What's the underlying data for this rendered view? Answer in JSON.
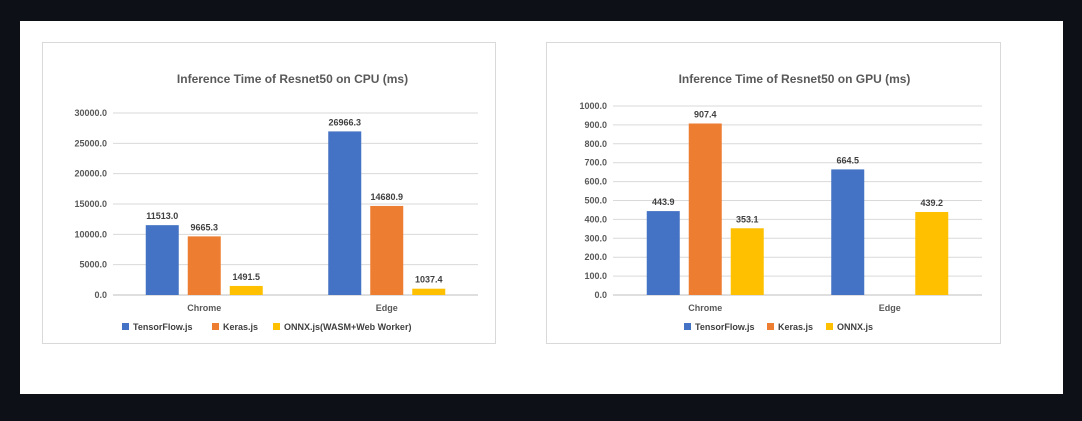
{
  "chart_data": [
    {
      "type": "bar",
      "title": "Inference Time of Resnet50 on CPU (ms)",
      "categories": [
        "Chrome",
        "Edge"
      ],
      "series": [
        {
          "name": "TensorFlow.js",
          "values": [
            11513.0,
            26966.3
          ],
          "color": "#4472c4"
        },
        {
          "name": "Keras.js",
          "values": [
            9665.3,
            14680.9
          ],
          "color": "#ed7d31"
        },
        {
          "name": "ONNX.js(WASM+Web Worker)",
          "values": [
            1491.5,
            1037.4
          ],
          "color": "#ffc000"
        }
      ],
      "ylim": [
        0,
        30000
      ],
      "yticks": [
        0,
        5000,
        10000,
        15000,
        20000,
        25000,
        30000
      ],
      "tick_decimals": 1,
      "grid": true,
      "legend": "bottom"
    },
    {
      "type": "bar",
      "title": "Inference Time of Resnet50 on GPU (ms)",
      "categories": [
        "Chrome",
        "Edge"
      ],
      "series": [
        {
          "name": "TensorFlow.js",
          "values": [
            443.9,
            664.5
          ],
          "color": "#4472c4"
        },
        {
          "name": "Keras.js",
          "values": [
            907.4,
            null
          ],
          "color": "#ed7d31"
        },
        {
          "name": "ONNX.js",
          "values": [
            353.1,
            439.2
          ],
          "color": "#ffc000"
        }
      ],
      "ylim": [
        0,
        1000
      ],
      "yticks": [
        0,
        100,
        200,
        300,
        400,
        500,
        600,
        700,
        800,
        900,
        1000
      ],
      "tick_decimals": 1,
      "grid": true,
      "legend": "bottom"
    }
  ]
}
